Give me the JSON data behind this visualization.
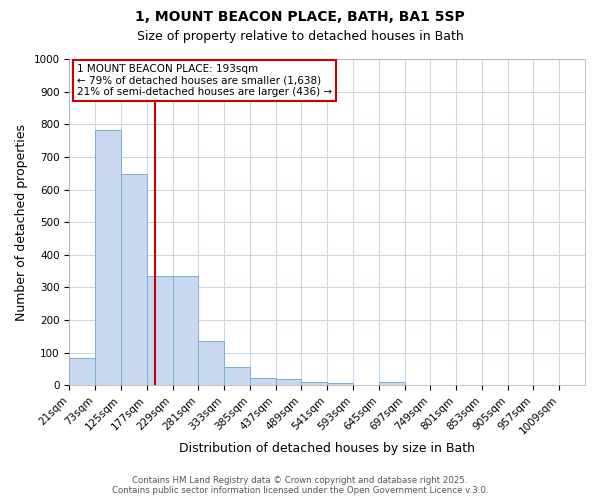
{
  "title_line1": "1, MOUNT BEACON PLACE, BATH, BA1 5SP",
  "title_line2": "Size of property relative to detached houses in Bath",
  "xlabel": "Distribution of detached houses by size in Bath",
  "ylabel": "Number of detached properties",
  "bin_edges": [
    21,
    73,
    125,
    177,
    229,
    281,
    333,
    385,
    437,
    489,
    541,
    593,
    645,
    697,
    749,
    801,
    853,
    905,
    957,
    1009,
    1061
  ],
  "bar_heights": [
    83,
    783,
    648,
    335,
    335,
    135,
    57,
    22,
    18,
    10,
    7,
    0,
    10,
    0,
    0,
    0,
    0,
    0,
    0,
    0
  ],
  "bar_color": "#c8d8ee",
  "bar_edge_color": "#7bafd4",
  "vline_x": 193,
  "vline_color": "#cc0000",
  "ylim": [
    0,
    1000
  ],
  "yticks": [
    0,
    100,
    200,
    300,
    400,
    500,
    600,
    700,
    800,
    900,
    1000
  ],
  "annotation_box_text": "1 MOUNT BEACON PLACE: 193sqm\n← 79% of detached houses are smaller (1,638)\n21% of semi-detached houses are larger (436) →",
  "box_edge_color": "#cc0000",
  "grid_color": "#c8d4e8",
  "background_color": "#ffffff",
  "title_fontsize": 10,
  "subtitle_fontsize": 9,
  "tick_fontsize": 7.5,
  "label_fontsize": 9,
  "annot_fontsize": 7.5,
  "footer_line1": "Contains HM Land Registry data © Crown copyright and database right 2025.",
  "footer_line2": "Contains public sector information licensed under the Open Government Licence v.3.0."
}
